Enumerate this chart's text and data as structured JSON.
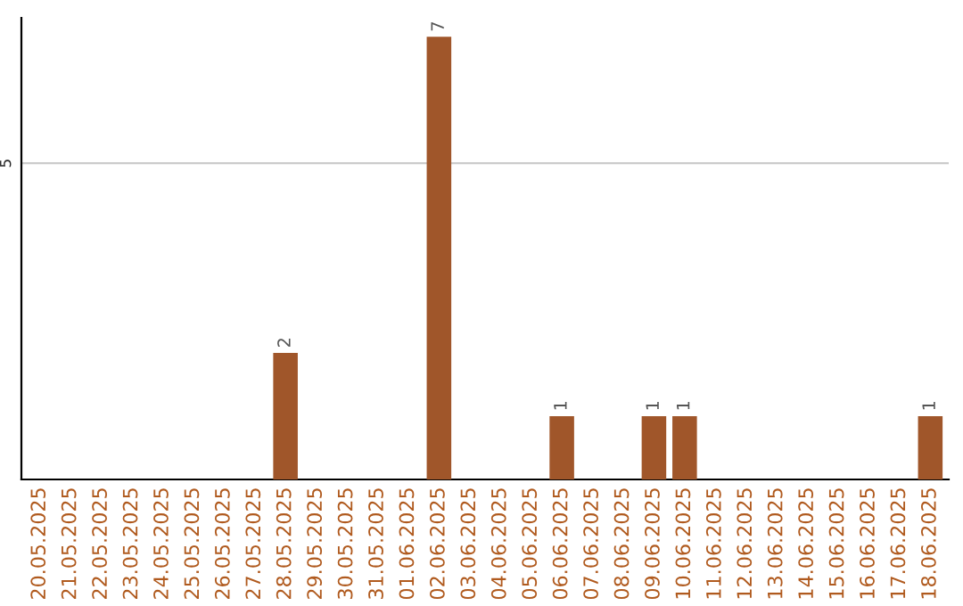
{
  "chart_data": {
    "type": "bar",
    "categories": [
      "20.05.2025",
      "21.05.2025",
      "22.05.2025",
      "23.05.2025",
      "24.05.2025",
      "25.05.2025",
      "26.05.2025",
      "27.05.2025",
      "28.05.2025",
      "29.05.2025",
      "30.05.2025",
      "31.05.2025",
      "01.06.2025",
      "02.06.2025",
      "03.06.2025",
      "04.06.2025",
      "05.06.2025",
      "06.06.2025",
      "07.06.2025",
      "08.06.2025",
      "09.06.2025",
      "10.06.2025",
      "11.06.2025",
      "12.06.2025",
      "13.06.2025",
      "14.06.2025",
      "15.06.2025",
      "16.06.2025",
      "17.06.2025",
      "18.06.2025"
    ],
    "values": [
      0,
      0,
      0,
      0,
      0,
      0,
      0,
      0,
      2,
      0,
      0,
      0,
      0,
      7,
      0,
      0,
      0,
      1,
      0,
      0,
      1,
      1,
      0,
      0,
      0,
      0,
      0,
      0,
      0,
      1
    ],
    "value_labels": [
      null,
      null,
      null,
      null,
      null,
      null,
      null,
      null,
      "2",
      null,
      null,
      null,
      null,
      "7",
      null,
      null,
      null,
      "1",
      null,
      null,
      "1",
      "1",
      null,
      null,
      null,
      null,
      null,
      null,
      null,
      "1"
    ],
    "color": "#a0562a",
    "ylim": [
      0,
      7.3
    ],
    "yticks": [
      5
    ],
    "grid": "y"
  }
}
